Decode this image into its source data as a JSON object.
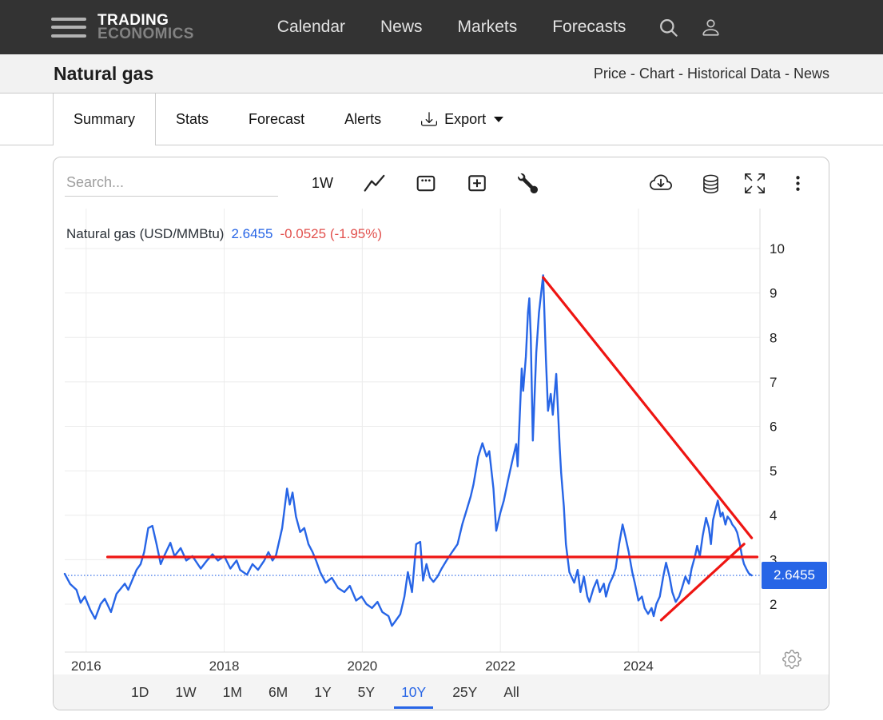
{
  "navbar": {
    "brand_line1": "TRADING",
    "brand_line2": "ECONOMICS",
    "links": [
      "Calendar",
      "News",
      "Markets",
      "Forecasts"
    ]
  },
  "header": {
    "title": "Natural gas",
    "links": [
      "Price",
      "Chart",
      "Historical Data",
      "News"
    ],
    "separator": " - "
  },
  "tabs": [
    {
      "label": "Summary",
      "active": true
    },
    {
      "label": "Stats",
      "active": false
    },
    {
      "label": "Forecast",
      "active": false
    },
    {
      "label": "Alerts",
      "active": false
    },
    {
      "label": "Export",
      "active": false,
      "download_icon": true,
      "caret": true
    }
  ],
  "toolbar": {
    "search_placeholder": "Search...",
    "interval_label": "1W",
    "icons": [
      "line-chart-icon",
      "calendar-icon",
      "compare-plus-icon",
      "wrench-icon",
      "cloud-download-icon",
      "database-icon",
      "fullscreen-icon",
      "kebab-menu-icon"
    ]
  },
  "price_badge": "2.6455",
  "ranges": [
    {
      "label": "1D",
      "active": false
    },
    {
      "label": "1W",
      "active": false
    },
    {
      "label": "1M",
      "active": false
    },
    {
      "label": "6M",
      "active": false
    },
    {
      "label": "1Y",
      "active": false
    },
    {
      "label": "5Y",
      "active": false
    },
    {
      "label": "10Y",
      "active": true
    },
    {
      "label": "25Y",
      "active": false
    },
    {
      "label": "All",
      "active": false
    }
  ],
  "chart_data": {
    "type": "line",
    "title": "Natural gas (USD/MMBtu)",
    "legend": {
      "name": "Natural gas (USD/MMBtu)",
      "last_value": "2.6455",
      "change": "-0.0525 (-1.95%)"
    },
    "current_value": 2.6455,
    "xlabel": "",
    "ylabel": "USD/MMBtu",
    "xlim": [
      2015.69,
      2025.76
    ],
    "ylim": [
      0.92,
      10.9
    ],
    "yticks": [
      2,
      3,
      4,
      5,
      6,
      7,
      8,
      9,
      10
    ],
    "xticks": [
      2016,
      2018,
      2020,
      2022,
      2024
    ],
    "grid": true,
    "legend_position": "top-left",
    "colors": {
      "series": "#2765e6",
      "trend": "#ee1512",
      "grid": "#ececec",
      "axis_line": "#dcdcdc",
      "tick_text": "#222222",
      "badge_bg": "#2765e6",
      "badge_text": "#ffffff",
      "legend_change": "#e2514e"
    },
    "series": [
      {
        "name": "Natural gas",
        "color": "#2765e6",
        "points": [
          [
            2015.69,
            2.68
          ],
          [
            2015.77,
            2.45
          ],
          [
            2015.86,
            2.32
          ],
          [
            2015.92,
            2.03
          ],
          [
            2015.98,
            2.17
          ],
          [
            2016.06,
            1.87
          ],
          [
            2016.13,
            1.67
          ],
          [
            2016.21,
            2.0
          ],
          [
            2016.27,
            2.12
          ],
          [
            2016.36,
            1.82
          ],
          [
            2016.44,
            2.23
          ],
          [
            2016.56,
            2.46
          ],
          [
            2016.61,
            2.32
          ],
          [
            2016.73,
            2.77
          ],
          [
            2016.79,
            2.9
          ],
          [
            2016.84,
            3.17
          ],
          [
            2016.9,
            3.71
          ],
          [
            2016.96,
            3.76
          ],
          [
            2017.02,
            3.35
          ],
          [
            2017.08,
            2.9
          ],
          [
            2017.13,
            3.08
          ],
          [
            2017.22,
            3.38
          ],
          [
            2017.28,
            3.08
          ],
          [
            2017.37,
            3.26
          ],
          [
            2017.45,
            2.98
          ],
          [
            2017.54,
            3.08
          ],
          [
            2017.66,
            2.8
          ],
          [
            2017.75,
            2.98
          ],
          [
            2017.83,
            3.12
          ],
          [
            2017.91,
            2.98
          ],
          [
            2018.0,
            3.08
          ],
          [
            2018.09,
            2.8
          ],
          [
            2018.18,
            2.98
          ],
          [
            2018.23,
            2.77
          ],
          [
            2018.33,
            2.66
          ],
          [
            2018.41,
            2.9
          ],
          [
            2018.49,
            2.77
          ],
          [
            2018.58,
            2.98
          ],
          [
            2018.64,
            3.17
          ],
          [
            2018.7,
            2.98
          ],
          [
            2018.75,
            3.1
          ],
          [
            2018.84,
            3.71
          ],
          [
            2018.91,
            4.6
          ],
          [
            2018.95,
            4.24
          ],
          [
            2018.99,
            4.51
          ],
          [
            2019.04,
            3.97
          ],
          [
            2019.1,
            3.62
          ],
          [
            2019.16,
            3.71
          ],
          [
            2019.22,
            3.35
          ],
          [
            2019.28,
            3.17
          ],
          [
            2019.33,
            2.98
          ],
          [
            2019.39,
            2.72
          ],
          [
            2019.47,
            2.48
          ],
          [
            2019.56,
            2.59
          ],
          [
            2019.65,
            2.36
          ],
          [
            2019.74,
            2.27
          ],
          [
            2019.82,
            2.41
          ],
          [
            2019.91,
            2.08
          ],
          [
            2019.99,
            2.17
          ],
          [
            2020.06,
            2.0
          ],
          [
            2020.14,
            1.91
          ],
          [
            2020.22,
            2.05
          ],
          [
            2020.29,
            1.82
          ],
          [
            2020.38,
            1.73
          ],
          [
            2020.43,
            1.51
          ],
          [
            2020.49,
            1.64
          ],
          [
            2020.55,
            1.77
          ],
          [
            2020.61,
            2.17
          ],
          [
            2020.66,
            2.72
          ],
          [
            2020.72,
            2.27
          ],
          [
            2020.78,
            3.35
          ],
          [
            2020.84,
            3.4
          ],
          [
            2020.88,
            2.53
          ],
          [
            2020.93,
            2.9
          ],
          [
            2020.98,
            2.6
          ],
          [
            2021.03,
            2.5
          ],
          [
            2021.09,
            2.62
          ],
          [
            2021.15,
            2.8
          ],
          [
            2021.22,
            2.98
          ],
          [
            2021.3,
            3.17
          ],
          [
            2021.38,
            3.35
          ],
          [
            2021.45,
            3.8
          ],
          [
            2021.5,
            4.06
          ],
          [
            2021.57,
            4.42
          ],
          [
            2021.61,
            4.69
          ],
          [
            2021.68,
            5.32
          ],
          [
            2021.74,
            5.62
          ],
          [
            2021.8,
            5.32
          ],
          [
            2021.84,
            5.44
          ],
          [
            2021.9,
            4.6
          ],
          [
            2021.94,
            3.65
          ],
          [
            2022.0,
            4.06
          ],
          [
            2022.05,
            4.33
          ],
          [
            2022.11,
            4.78
          ],
          [
            2022.17,
            5.2
          ],
          [
            2022.23,
            5.6
          ],
          [
            2022.25,
            5.1
          ],
          [
            2022.31,
            7.3
          ],
          [
            2022.33,
            6.8
          ],
          [
            2022.37,
            7.57
          ],
          [
            2022.4,
            8.56
          ],
          [
            2022.42,
            8.88
          ],
          [
            2022.44,
            8.02
          ],
          [
            2022.47,
            5.68
          ],
          [
            2022.52,
            7.66
          ],
          [
            2022.56,
            8.56
          ],
          [
            2022.62,
            9.4
          ],
          [
            2022.66,
            7.5
          ],
          [
            2022.69,
            6.35
          ],
          [
            2022.73,
            6.73
          ],
          [
            2022.76,
            6.26
          ],
          [
            2022.81,
            7.18
          ],
          [
            2022.86,
            5.5
          ],
          [
            2022.88,
            4.96
          ],
          [
            2022.92,
            4.2
          ],
          [
            2022.95,
            3.35
          ],
          [
            2023.0,
            2.72
          ],
          [
            2023.07,
            2.48
          ],
          [
            2023.12,
            2.77
          ],
          [
            2023.16,
            2.27
          ],
          [
            2023.21,
            2.62
          ],
          [
            2023.26,
            2.17
          ],
          [
            2023.29,
            2.05
          ],
          [
            2023.35,
            2.36
          ],
          [
            2023.4,
            2.54
          ],
          [
            2023.44,
            2.27
          ],
          [
            2023.5,
            2.46
          ],
          [
            2023.53,
            2.17
          ],
          [
            2023.58,
            2.46
          ],
          [
            2023.63,
            2.62
          ],
          [
            2023.67,
            2.8
          ],
          [
            2023.72,
            3.35
          ],
          [
            2023.77,
            3.79
          ],
          [
            2023.81,
            3.53
          ],
          [
            2023.86,
            3.17
          ],
          [
            2023.91,
            2.72
          ],
          [
            2023.95,
            2.46
          ],
          [
            2024.0,
            2.08
          ],
          [
            2024.05,
            2.17
          ],
          [
            2024.09,
            1.91
          ],
          [
            2024.14,
            1.78
          ],
          [
            2024.19,
            1.91
          ],
          [
            2024.22,
            1.73
          ],
          [
            2024.26,
            2.0
          ],
          [
            2024.31,
            2.17
          ],
          [
            2024.36,
            2.62
          ],
          [
            2024.4,
            2.93
          ],
          [
            2024.45,
            2.62
          ],
          [
            2024.49,
            2.27
          ],
          [
            2024.54,
            2.05
          ],
          [
            2024.59,
            2.17
          ],
          [
            2024.63,
            2.36
          ],
          [
            2024.68,
            2.62
          ],
          [
            2024.73,
            2.46
          ],
          [
            2024.77,
            2.8
          ],
          [
            2024.82,
            3.08
          ],
          [
            2024.85,
            3.31
          ],
          [
            2024.89,
            3.08
          ],
          [
            2024.93,
            3.53
          ],
          [
            2024.98,
            3.94
          ],
          [
            2025.02,
            3.71
          ],
          [
            2025.05,
            3.35
          ],
          [
            2025.08,
            3.89
          ],
          [
            2025.12,
            4.15
          ],
          [
            2025.15,
            4.33
          ],
          [
            2025.19,
            3.97
          ],
          [
            2025.22,
            4.06
          ],
          [
            2025.26,
            3.79
          ],
          [
            2025.29,
            3.97
          ],
          [
            2025.33,
            3.89
          ],
          [
            2025.36,
            3.79
          ],
          [
            2025.4,
            3.71
          ],
          [
            2025.43,
            3.61
          ],
          [
            2025.47,
            3.35
          ],
          [
            2025.5,
            3.08
          ],
          [
            2025.53,
            2.9
          ],
          [
            2025.57,
            2.77
          ],
          [
            2025.6,
            2.69
          ],
          [
            2025.64,
            2.6455
          ]
        ]
      }
    ],
    "trendlines": [
      {
        "name": "horizontal-resistance",
        "x1": 2016.31,
        "y1": 3.06,
        "x2": 2025.72,
        "y2": 3.06
      },
      {
        "name": "descending-trendline",
        "x1": 2022.62,
        "y1": 9.35,
        "x2": 2025.64,
        "y2": 3.49
      },
      {
        "name": "ascending-trendline",
        "x1": 2024.33,
        "y1": 1.64,
        "x2": 2025.53,
        "y2": 3.35
      }
    ]
  }
}
